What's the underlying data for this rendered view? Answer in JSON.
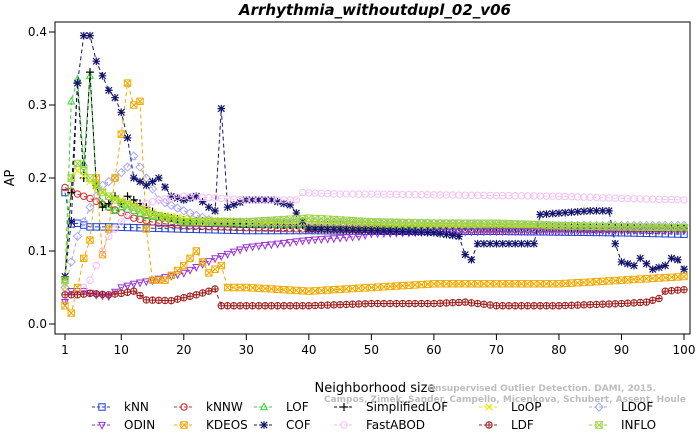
{
  "chart_data": {
    "type": "line",
    "title": "Arrhythmia_withoutdupl_02_v06",
    "xlabel": "Neighborhood size",
    "ylabel": "AP",
    "xlim": [
      1,
      100
    ],
    "ylim": [
      0.0,
      0.4
    ],
    "x_ticks": [
      1,
      10,
      20,
      30,
      40,
      50,
      60,
      70,
      80,
      90,
      100
    ],
    "y_ticks": [
      0.0,
      0.1,
      0.2,
      0.3,
      0.4
    ],
    "grid": false,
    "legend_position": "bottom",
    "credit_lines": [
      "Unsupervised Outlier Detection. DAMI, 2015.",
      "Campos, Zimek, Sander, Campello, Micenkova, Schubert, Assent, Houle"
    ],
    "series": [
      {
        "name": "kNN",
        "color": "#1c3fd1",
        "marker": "square",
        "points": [
          [
            1,
            0.18
          ],
          [
            2,
            0.137
          ],
          [
            3,
            0.138
          ],
          [
            5,
            0.133
          ],
          [
            8,
            0.133
          ],
          [
            12,
            0.132
          ],
          [
            20,
            0.13
          ],
          [
            30,
            0.128
          ],
          [
            40,
            0.128
          ],
          [
            50,
            0.127
          ],
          [
            60,
            0.127
          ],
          [
            70,
            0.127
          ],
          [
            80,
            0.126
          ],
          [
            90,
            0.125
          ],
          [
            100,
            0.123
          ]
        ]
      },
      {
        "name": "kNNW",
        "color": "#d42a2a",
        "marker": "circle",
        "points": [
          [
            1,
            0.187
          ],
          [
            2,
            0.182
          ],
          [
            3,
            0.178
          ],
          [
            5,
            0.172
          ],
          [
            8,
            0.16
          ],
          [
            12,
            0.145
          ],
          [
            16,
            0.138
          ],
          [
            20,
            0.135
          ],
          [
            30,
            0.132
          ],
          [
            40,
            0.13
          ],
          [
            60,
            0.129
          ],
          [
            80,
            0.13
          ],
          [
            100,
            0.13
          ]
        ]
      },
      {
        "name": "LOF",
        "color": "#33d633",
        "marker": "triangle",
        "points": [
          [
            1,
            0.06
          ],
          [
            2,
            0.305
          ],
          [
            3,
            0.335
          ],
          [
            4,
            0.22
          ],
          [
            5,
            0.34
          ],
          [
            6,
            0.19
          ],
          [
            7,
            0.165
          ],
          [
            8,
            0.16
          ],
          [
            9,
            0.155
          ],
          [
            10,
            0.16
          ],
          [
            12,
            0.155
          ],
          [
            14,
            0.148
          ],
          [
            17,
            0.145
          ],
          [
            20,
            0.14
          ],
          [
            30,
            0.137
          ],
          [
            40,
            0.135
          ],
          [
            60,
            0.133
          ],
          [
            80,
            0.132
          ],
          [
            100,
            0.132
          ]
        ]
      },
      {
        "name": "SimplifiedLOF",
        "color": "#000000",
        "marker": "plus",
        "points": [
          [
            1,
            0.065
          ],
          [
            2,
            0.18
          ],
          [
            3,
            0.33
          ],
          [
            4,
            0.2
          ],
          [
            5,
            0.345
          ],
          [
            6,
            0.19
          ],
          [
            7,
            0.16
          ],
          [
            8,
            0.165
          ],
          [
            9,
            0.175
          ],
          [
            10,
            0.165
          ],
          [
            11,
            0.175
          ],
          [
            12,
            0.17
          ],
          [
            13,
            0.165
          ],
          [
            14,
            0.16
          ],
          [
            16,
            0.148
          ],
          [
            20,
            0.142
          ],
          [
            30,
            0.137
          ],
          [
            50,
            0.134
          ],
          [
            80,
            0.132
          ],
          [
            100,
            0.131
          ]
        ]
      },
      {
        "name": "LoOP",
        "color": "#e8e800",
        "marker": "cross",
        "points": [
          [
            1,
            0.05
          ],
          [
            2,
            0.2
          ],
          [
            3,
            0.21
          ],
          [
            5,
            0.195
          ],
          [
            8,
            0.175
          ],
          [
            10,
            0.17
          ],
          [
            13,
            0.16
          ],
          [
            16,
            0.15
          ],
          [
            20,
            0.145
          ],
          [
            30,
            0.14
          ],
          [
            50,
            0.137
          ],
          [
            80,
            0.134
          ],
          [
            100,
            0.132
          ]
        ]
      },
      {
        "name": "LDOF",
        "color": "#a8a8f0",
        "marker": "diamond",
        "points": [
          [
            1,
            0.05
          ],
          [
            3,
            0.12
          ],
          [
            5,
            0.16
          ],
          [
            7,
            0.19
          ],
          [
            9,
            0.2
          ],
          [
            11,
            0.215
          ],
          [
            12,
            0.23
          ],
          [
            14,
            0.2
          ],
          [
            16,
            0.17
          ],
          [
            20,
            0.155
          ],
          [
            25,
            0.14
          ],
          [
            30,
            0.14
          ],
          [
            40,
            0.14
          ],
          [
            60,
            0.138
          ],
          [
            80,
            0.135
          ],
          [
            100,
            0.135
          ]
        ]
      },
      {
        "name": "ODIN",
        "color": "#9a33d6",
        "marker": "triangle-down",
        "points": [
          [
            1,
            0.03
          ],
          [
            2,
            0.045
          ],
          [
            4,
            0.045
          ],
          [
            6,
            0.04
          ],
          [
            8,
            0.038
          ],
          [
            10,
            0.05
          ],
          [
            12,
            0.055
          ],
          [
            15,
            0.06
          ],
          [
            20,
            0.07
          ],
          [
            25,
            0.09
          ],
          [
            30,
            0.105
          ],
          [
            35,
            0.11
          ],
          [
            40,
            0.115
          ],
          [
            45,
            0.118
          ],
          [
            48,
            0.12
          ],
          [
            50,
            0.124
          ],
          [
            60,
            0.126
          ],
          [
            70,
            0.127
          ],
          [
            80,
            0.127
          ],
          [
            90,
            0.128
          ],
          [
            100,
            0.128
          ]
        ]
      },
      {
        "name": "KDEOS",
        "color": "#f2a900",
        "marker": "square-x",
        "points": [
          [
            1,
            0.025
          ],
          [
            2,
            0.015
          ],
          [
            3,
            0.05
          ],
          [
            4,
            0.09
          ],
          [
            5,
            0.115
          ],
          [
            6,
            0.2
          ],
          [
            7,
            0.095
          ],
          [
            8,
            0.13
          ],
          [
            9,
            0.2
          ],
          [
            10,
            0.26
          ],
          [
            11,
            0.33
          ],
          [
            12,
            0.3
          ],
          [
            13,
            0.305
          ],
          [
            14,
            0.13
          ],
          [
            15,
            0.06
          ],
          [
            17,
            0.06
          ],
          [
            20,
            0.08
          ],
          [
            22,
            0.1
          ],
          [
            24,
            0.07
          ],
          [
            26,
            0.08
          ],
          [
            27,
            0.05
          ],
          [
            30,
            0.05
          ],
          [
            40,
            0.045
          ],
          [
            50,
            0.05
          ],
          [
            60,
            0.055
          ],
          [
            70,
            0.055
          ],
          [
            80,
            0.055
          ],
          [
            90,
            0.06
          ],
          [
            100,
            0.065
          ]
        ]
      },
      {
        "name": "COF",
        "color": "#14146e",
        "marker": "asterisk",
        "points": [
          [
            1,
            0.065
          ],
          [
            2,
            0.14
          ],
          [
            3,
            0.33
          ],
          [
            4,
            0.395
          ],
          [
            5,
            0.395
          ],
          [
            6,
            0.36
          ],
          [
            7,
            0.34
          ],
          [
            8,
            0.32
          ],
          [
            9,
            0.31
          ],
          [
            10,
            0.29
          ],
          [
            11,
            0.255
          ],
          [
            12,
            0.2
          ],
          [
            14,
            0.19
          ],
          [
            16,
            0.2
          ],
          [
            18,
            0.175
          ],
          [
            20,
            0.17
          ],
          [
            22,
            0.175
          ],
          [
            24,
            0.16
          ],
          [
            25,
            0.155
          ],
          [
            26,
            0.295
          ],
          [
            27,
            0.16
          ],
          [
            30,
            0.17
          ],
          [
            34,
            0.17
          ],
          [
            36,
            0.165
          ],
          [
            37,
            0.163
          ],
          [
            40,
            0.13
          ],
          [
            50,
            0.128
          ],
          [
            60,
            0.125
          ],
          [
            64,
            0.12
          ],
          [
            65,
            0.095
          ],
          [
            66,
            0.088
          ],
          [
            67,
            0.11
          ],
          [
            72,
            0.11
          ],
          [
            76,
            0.11
          ],
          [
            77,
            0.15
          ],
          [
            85,
            0.155
          ],
          [
            88,
            0.155
          ],
          [
            89,
            0.11
          ],
          [
            90,
            0.085
          ],
          [
            92,
            0.08
          ],
          [
            93,
            0.09
          ],
          [
            95,
            0.075
          ],
          [
            97,
            0.08
          ],
          [
            98,
            0.09
          ],
          [
            99,
            0.088
          ],
          [
            100,
            0.075
          ]
        ]
      },
      {
        "name": "FastABOD",
        "color": "#f5bff5",
        "marker": "circle-filled",
        "points": [
          [
            1,
            0.04
          ],
          [
            3,
            0.04
          ],
          [
            5,
            0.06
          ],
          [
            8,
            0.12
          ],
          [
            12,
            0.16
          ],
          [
            16,
            0.17
          ],
          [
            20,
            0.175
          ],
          [
            30,
            0.17
          ],
          [
            38,
            0.17
          ],
          [
            39,
            0.18
          ],
          [
            45,
            0.178
          ],
          [
            50,
            0.178
          ],
          [
            60,
            0.177
          ],
          [
            70,
            0.176
          ],
          [
            80,
            0.175
          ],
          [
            90,
            0.172
          ],
          [
            100,
            0.17
          ]
        ]
      },
      {
        "name": "LDF",
        "color": "#a01c1c",
        "marker": "circle-plus",
        "points": [
          [
            1,
            0.04
          ],
          [
            3,
            0.04
          ],
          [
            5,
            0.042
          ],
          [
            8,
            0.04
          ],
          [
            10,
            0.042
          ],
          [
            12,
            0.045
          ],
          [
            14,
            0.033
          ],
          [
            18,
            0.032
          ],
          [
            22,
            0.04
          ],
          [
            24,
            0.045
          ],
          [
            25,
            0.048
          ],
          [
            26,
            0.025
          ],
          [
            30,
            0.025
          ],
          [
            40,
            0.025
          ],
          [
            50,
            0.028
          ],
          [
            60,
            0.028
          ],
          [
            65,
            0.03
          ],
          [
            70,
            0.025
          ],
          [
            80,
            0.025
          ],
          [
            90,
            0.028
          ],
          [
            94,
            0.03
          ],
          [
            96,
            0.035
          ],
          [
            97,
            0.045
          ],
          [
            100,
            0.047
          ]
        ]
      },
      {
        "name": "INFLO",
        "color": "#9ad63a",
        "marker": "hourglass",
        "points": [
          [
            1,
            0.06
          ],
          [
            2,
            0.2
          ],
          [
            3,
            0.22
          ],
          [
            5,
            0.2
          ],
          [
            7,
            0.18
          ],
          [
            9,
            0.17
          ],
          [
            12,
            0.16
          ],
          [
            15,
            0.15
          ],
          [
            20,
            0.14
          ],
          [
            25,
            0.14
          ],
          [
            30,
            0.14
          ],
          [
            40,
            0.145
          ],
          [
            50,
            0.14
          ],
          [
            60,
            0.138
          ],
          [
            70,
            0.138
          ],
          [
            80,
            0.135
          ],
          [
            90,
            0.133
          ],
          [
            100,
            0.132
          ]
        ]
      }
    ]
  }
}
